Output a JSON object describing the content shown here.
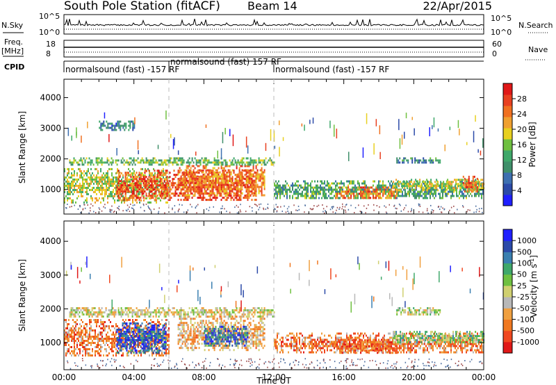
{
  "header": {
    "station": "South Pole Station (fitACF)",
    "beam": "Beam 14",
    "date": "22/Apr/2015"
  },
  "strips": {
    "nsky_label": "N.Sky",
    "nsky_ticks": [
      "10^5",
      "10^0"
    ],
    "nsearch_label": "N.Search",
    "nsearch_ticks": [
      "10^5",
      "10^0"
    ],
    "freq_label": "Freq.",
    "freq_unit": "[MHz]",
    "freq_ticks": [
      "18",
      "8"
    ],
    "nave_label": "Nave",
    "nave_ticks": [
      "60",
      "0"
    ],
    "cpid_label": "CPID"
  },
  "cpid_segments": [
    {
      "start_hour": 0,
      "label": "normalsound (fast) -157 RF"
    },
    {
      "start_hour": 6,
      "label": "normalsound (fast) 157 RF"
    },
    {
      "start_hour": 12,
      "label": "normalsound (fast) -157 RF"
    }
  ],
  "colors": {
    "power": [
      "#1f1fff",
      "#2b4aa8",
      "#3d6fb0",
      "#3f8f6a",
      "#3fa86a",
      "#6fc040",
      "#e8d020",
      "#f0a030",
      "#f07020",
      "#e84020",
      "#e01818"
    ],
    "velocity": [
      "#e01818",
      "#f04820",
      "#f07820",
      "#f0a040",
      "#b8b8b8",
      "#d0d070",
      "#6fc040",
      "#3fa86a",
      "#3a7fb0",
      "#2b4aa8",
      "#1f1fff"
    ]
  },
  "chart_data": [
    {
      "type": "heatmap",
      "name": "power",
      "xlabel": "",
      "ylabel": "Slant Range [km]",
      "xlim": [
        0,
        24
      ],
      "ylim": [
        200,
        4600
      ],
      "yticks": [
        "1000",
        "2000",
        "3000",
        "4000"
      ],
      "colorbar": {
        "label": "Power [dB]",
        "ticks": [
          "28",
          "24",
          "20",
          "16",
          "12",
          "8",
          "4"
        ],
        "range": [
          0,
          32
        ]
      },
      "bands": [
        {
          "t0": 0.0,
          "t1": 6.0,
          "r0": 600,
          "r1": 1700,
          "level": 0.55
        },
        {
          "t0": 3.0,
          "t1": 11.0,
          "r0": 650,
          "r1": 1650,
          "level": 0.85
        },
        {
          "t0": 6.5,
          "t1": 11.5,
          "r0": 800,
          "r1": 1800,
          "level": 0.75
        },
        {
          "t0": 0.3,
          "t1": 12.0,
          "r0": 1800,
          "r1": 2050,
          "level": 0.45
        },
        {
          "t0": 2.0,
          "t1": 4.0,
          "r0": 2950,
          "r1": 3250,
          "level": 0.25
        },
        {
          "t0": 12.0,
          "t1": 24.0,
          "r0": 700,
          "r1": 1300,
          "level": 0.4
        },
        {
          "t0": 15.5,
          "t1": 19.0,
          "r0": 700,
          "r1": 1100,
          "level": 0.75
        },
        {
          "t0": 18.8,
          "t1": 24.0,
          "r0": 1000,
          "r1": 1350,
          "level": 0.55
        },
        {
          "t0": 22.8,
          "t1": 23.6,
          "r0": 900,
          "r1": 1450,
          "level": 0.85
        },
        {
          "t0": 19.0,
          "t1": 21.5,
          "r0": 1850,
          "r1": 2050,
          "level": 0.3
        }
      ]
    },
    {
      "type": "heatmap",
      "name": "velocity",
      "xlabel": "Time UT",
      "ylabel": "Slant Range [km]",
      "xlim": [
        0,
        24
      ],
      "ylim": [
        200,
        4600
      ],
      "xticks": [
        "00:00",
        "04:00",
        "08:00",
        "12:00",
        "16:00",
        "20:00",
        "00:00"
      ],
      "yticks": [
        "1000",
        "2000",
        "3000",
        "4000"
      ],
      "colorbar": {
        "label": "Velocity [m s-1]",
        "ticks": [
          "1000",
          "500",
          "100",
          "50",
          "25",
          "-25",
          "-50",
          "-100",
          "-500",
          "-1000"
        ],
        "range": [
          -1000,
          1000
        ]
      },
      "bands": [
        {
          "t0": 0.0,
          "t1": 6.0,
          "r0": 600,
          "r1": 1700,
          "level": 0.25
        },
        {
          "t0": 3.0,
          "t1": 5.8,
          "r0": 700,
          "r1": 1600,
          "level": 0.85
        },
        {
          "t0": 6.5,
          "t1": 11.5,
          "r0": 800,
          "r1": 1800,
          "level": 0.35
        },
        {
          "t0": 8.0,
          "t1": 10.5,
          "r0": 900,
          "r1": 1500,
          "level": 0.8
        },
        {
          "t0": 0.3,
          "t1": 12.0,
          "r0": 1800,
          "r1": 2050,
          "level": 0.45
        },
        {
          "t0": 12.0,
          "t1": 24.0,
          "r0": 700,
          "r1": 1300,
          "level": 0.25
        },
        {
          "t0": 15.5,
          "t1": 19.0,
          "r0": 700,
          "r1": 1100,
          "level": 0.2
        },
        {
          "t0": 18.8,
          "t1": 24.0,
          "r0": 1000,
          "r1": 1350,
          "level": 0.6
        },
        {
          "t0": 19.0,
          "t1": 21.5,
          "r0": 1850,
          "r1": 2050,
          "level": 0.5
        }
      ]
    }
  ],
  "axis_label_time": "Time UT",
  "power_label": "Power [dB]",
  "velocity_label": "Velocity [m s",
  "velocity_label_sup": "-1",
  "velocity_label_end": "]"
}
